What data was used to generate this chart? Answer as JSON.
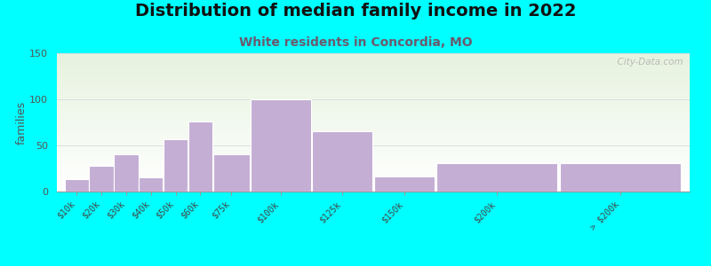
{
  "title": "Distribution of median family income in 2022",
  "subtitle": "White residents in Concordia, MO",
  "categories": [
    "$10k",
    "$20k",
    "$30k",
    "$40k",
    "$50k",
    "$60k",
    "$75k",
    "$100k",
    "$125k",
    "$150k",
    "$200k",
    "> $200k"
  ],
  "values": [
    13,
    28,
    40,
    15,
    57,
    76,
    40,
    100,
    65,
    16,
    31,
    31
  ],
  "bar_widths": [
    1,
    1,
    1,
    1,
    1,
    1,
    1.5,
    2.5,
    2.5,
    2.5,
    5,
    5
  ],
  "bar_lefts": [
    0,
    1,
    2,
    3,
    4,
    5,
    6,
    7.5,
    10,
    12.5,
    15,
    20
  ],
  "bar_color": "#c4aed4",
  "background_color": "#00ffff",
  "ylabel": "families",
  "ylim": [
    0,
    150
  ],
  "yticks": [
    0,
    50,
    100,
    150
  ],
  "watermark": "  City-Data.com",
  "title_fontsize": 14,
  "subtitle_fontsize": 10,
  "subtitle_color": "#6b5a6e",
  "title_color": "#111111",
  "ylabel_color": "#555555",
  "grid_color": "#dddddd",
  "watermark_color": "#b0b0b0",
  "xlim": [
    -0.5,
    25
  ]
}
